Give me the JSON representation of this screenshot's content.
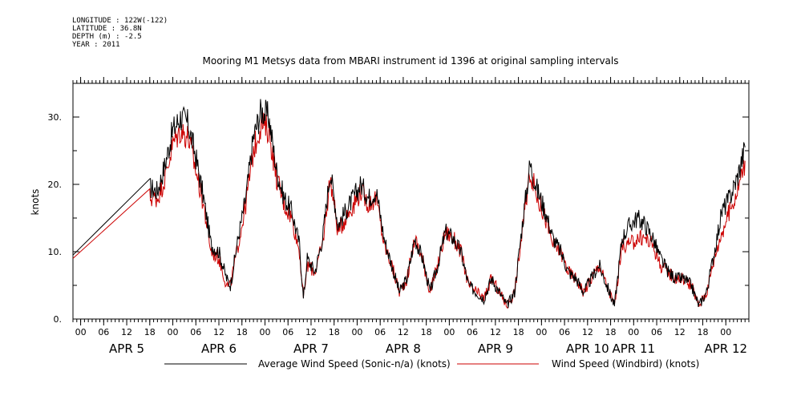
{
  "metadata": {
    "longitude": "LONGITUDE : 122W(-122)",
    "latitude": "LATITUDE : 36.8N",
    "depth": "DEPTH (m) : -2.5",
    "year": "YEAR : 2011"
  },
  "chart_data": {
    "type": "line",
    "title": "Mooring M1 Metsys data from MBARI instrument id 1396 at original sampling intervals",
    "ylabel": "knots",
    "xlabel": "",
    "xlim": [
      "2011-04-04T22:00",
      "2011-04-12T06:00"
    ],
    "ylim": [
      0,
      35
    ],
    "y_ticks": [
      "0.",
      "10.",
      "20.",
      "30."
    ],
    "x_hour_ticks": [
      {
        "t": "2011-04-05T00:00",
        "label": "00"
      },
      {
        "t": "2011-04-05T06:00",
        "label": "06"
      },
      {
        "t": "2011-04-05T12:00",
        "label": "12"
      },
      {
        "t": "2011-04-05T18:00",
        "label": "18"
      },
      {
        "t": "2011-04-06T00:00",
        "label": "00"
      },
      {
        "t": "2011-04-06T06:00",
        "label": "06"
      },
      {
        "t": "2011-04-06T12:00",
        "label": "12"
      },
      {
        "t": "2011-04-06T18:00",
        "label": "18"
      },
      {
        "t": "2011-04-07T00:00",
        "label": "00"
      },
      {
        "t": "2011-04-07T06:00",
        "label": "06"
      },
      {
        "t": "2011-04-07T12:00",
        "label": "12"
      },
      {
        "t": "2011-04-07T18:00",
        "label": "18"
      },
      {
        "t": "2011-04-08T00:00",
        "label": "00"
      },
      {
        "t": "2011-04-08T06:00",
        "label": "06"
      },
      {
        "t": "2011-04-08T12:00",
        "label": "12"
      },
      {
        "t": "2011-04-08T18:00",
        "label": "18"
      },
      {
        "t": "2011-04-09T00:00",
        "label": "00"
      },
      {
        "t": "2011-04-09T06:00",
        "label": "06"
      },
      {
        "t": "2011-04-09T12:00",
        "label": "12"
      },
      {
        "t": "2011-04-09T18:00",
        "label": "18"
      },
      {
        "t": "2011-04-10T00:00",
        "label": "00"
      },
      {
        "t": "2011-04-10T06:00",
        "label": "06"
      },
      {
        "t": "2011-04-10T12:00",
        "label": "12"
      },
      {
        "t": "2011-04-10T18:00",
        "label": "18"
      },
      {
        "t": "2011-04-11T00:00",
        "label": "00"
      },
      {
        "t": "2011-04-11T06:00",
        "label": "06"
      },
      {
        "t": "2011-04-11T12:00",
        "label": "12"
      },
      {
        "t": "2011-04-11T18:00",
        "label": "18"
      },
      {
        "t": "2011-04-12T00:00",
        "label": "00"
      }
    ],
    "x_day_labels": [
      {
        "t": "2011-04-05T12:00",
        "label": "APR  5"
      },
      {
        "t": "2011-04-06T12:00",
        "label": "APR  6"
      },
      {
        "t": "2011-04-07T12:00",
        "label": "APR  7"
      },
      {
        "t": "2011-04-08T12:00",
        "label": "APR  8"
      },
      {
        "t": "2011-04-09T12:00",
        "label": "APR  9"
      },
      {
        "t": "2011-04-10T12:00",
        "label": "APR 10"
      },
      {
        "t": "2011-04-11T00:00",
        "label": "APR 11"
      },
      {
        "t": "2011-04-12T00:00",
        "label": "APR 12"
      }
    ],
    "grid": false,
    "legend_position": "bottom",
    "series": [
      {
        "name": "Average Wind Speed (Sonic-n/a) (knots)",
        "color": "#000000",
        "x": [
          "2011-04-04T22:00",
          "2011-04-05T18:00",
          "2011-04-05T20:00",
          "2011-04-05T22:00",
          "2011-04-06T00:00",
          "2011-04-06T02:00",
          "2011-04-06T04:00",
          "2011-04-06T06:00",
          "2011-04-06T08:00",
          "2011-04-06T10:00",
          "2011-04-06T12:00",
          "2011-04-06T14:00",
          "2011-04-06T15:00",
          "2011-04-06T17:00",
          "2011-04-06T19:00",
          "2011-04-06T21:00",
          "2011-04-06T23:00",
          "2011-04-07T01:00",
          "2011-04-07T03:00",
          "2011-04-07T05:00",
          "2011-04-07T07:00",
          "2011-04-07T09:00",
          "2011-04-07T10:00",
          "2011-04-07T11:00",
          "2011-04-07T13:00",
          "2011-04-07T15:00",
          "2011-04-07T17:00",
          "2011-04-07T19:00",
          "2011-04-07T21:00",
          "2011-04-07T23:00",
          "2011-04-08T01:00",
          "2011-04-08T03:00",
          "2011-04-08T05:00",
          "2011-04-08T07:00",
          "2011-04-08T09:00",
          "2011-04-08T11:00",
          "2011-04-08T13:00",
          "2011-04-08T15:00",
          "2011-04-08T17:00",
          "2011-04-08T19:00",
          "2011-04-08T21:00",
          "2011-04-08T23:00",
          "2011-04-09T01:00",
          "2011-04-09T03:00",
          "2011-04-09T05:00",
          "2011-04-09T07:00",
          "2011-04-09T09:00",
          "2011-04-09T11:00",
          "2011-04-09T13:00",
          "2011-04-09T15:00",
          "2011-04-09T17:00",
          "2011-04-09T19:00",
          "2011-04-09T21:00",
          "2011-04-09T23:00",
          "2011-04-10T01:00",
          "2011-04-10T03:00",
          "2011-04-10T05:00",
          "2011-04-10T07:00",
          "2011-04-10T09:00",
          "2011-04-10T11:00",
          "2011-04-10T13:00",
          "2011-04-10T15:00",
          "2011-04-10T17:00",
          "2011-04-10T19:00",
          "2011-04-10T21:00",
          "2011-04-10T23:00",
          "2011-04-11T01:00",
          "2011-04-11T03:00",
          "2011-04-11T05:00",
          "2011-04-11T07:00",
          "2011-04-11T09:00",
          "2011-04-11T11:00",
          "2011-04-11T13:00",
          "2011-04-11T15:00",
          "2011-04-11T17:00",
          "2011-04-11T19:00",
          "2011-04-11T21:00",
          "2011-04-11T23:00",
          "2011-04-12T01:00",
          "2011-04-12T03:00",
          "2011-04-12T05:00"
        ],
        "y": [
          9.5,
          19.5,
          19,
          23,
          28,
          30,
          29,
          24,
          18,
          11,
          10,
          6,
          5,
          12,
          18,
          27,
          31,
          30,
          22,
          18,
          16,
          11,
          3,
          9,
          7,
          12,
          22,
          14,
          16,
          18,
          20,
          18,
          19,
          12,
          8,
          4,
          6,
          12,
          9,
          4,
          8,
          13,
          12,
          10,
          5,
          4,
          3,
          6,
          4,
          2,
          4,
          14,
          23,
          19,
          16,
          12,
          10,
          7,
          6,
          4,
          6,
          8,
          5,
          2,
          12,
          14,
          15,
          14,
          12,
          9,
          7,
          6,
          6,
          5,
          2,
          4,
          10,
          16,
          18,
          21,
          25.5
        ],
        "spike_amplitude": 1.6
      },
      {
        "name": "Wind Speed (Windbird) (knots)",
        "color": "#cc0000",
        "x": [
          "2011-04-04T22:00",
          "2011-04-05T18:00",
          "2011-04-05T20:00",
          "2011-04-05T22:00",
          "2011-04-06T00:00",
          "2011-04-06T02:00",
          "2011-04-06T04:00",
          "2011-04-06T06:00",
          "2011-04-06T08:00",
          "2011-04-06T10:00",
          "2011-04-06T12:00",
          "2011-04-06T14:00",
          "2011-04-06T15:00",
          "2011-04-06T17:00",
          "2011-04-06T19:00",
          "2011-04-06T21:00",
          "2011-04-06T23:00",
          "2011-04-07T01:00",
          "2011-04-07T03:00",
          "2011-04-07T05:00",
          "2011-04-07T07:00",
          "2011-04-07T09:00",
          "2011-04-07T10:00",
          "2011-04-07T11:00",
          "2011-04-07T13:00",
          "2011-04-07T15:00",
          "2011-04-07T17:00",
          "2011-04-07T19:00",
          "2011-04-07T21:00",
          "2011-04-07T23:00",
          "2011-04-08T01:00",
          "2011-04-08T03:00",
          "2011-04-08T05:00",
          "2011-04-08T07:00",
          "2011-04-08T09:00",
          "2011-04-08T11:00",
          "2011-04-08T13:00",
          "2011-04-08T15:00",
          "2011-04-08T17:00",
          "2011-04-08T19:00",
          "2011-04-08T21:00",
          "2011-04-08T23:00",
          "2011-04-09T01:00",
          "2011-04-09T03:00",
          "2011-04-09T05:00",
          "2011-04-09T07:00",
          "2011-04-09T09:00",
          "2011-04-09T11:00",
          "2011-04-09T13:00",
          "2011-04-09T15:00",
          "2011-04-09T17:00",
          "2011-04-09T19:00",
          "2011-04-09T21:00",
          "2011-04-09T23:00",
          "2011-04-10T01:00",
          "2011-04-10T03:00",
          "2011-04-10T05:00",
          "2011-04-10T07:00",
          "2011-04-10T09:00",
          "2011-04-10T11:00",
          "2011-04-10T13:00",
          "2011-04-10T15:00",
          "2011-04-10T17:00",
          "2011-04-10T19:00",
          "2011-04-10T21:00",
          "2011-04-10T23:00",
          "2011-04-11T01:00",
          "2011-04-11T03:00",
          "2011-04-11T05:00",
          "2011-04-11T07:00",
          "2011-04-11T09:00",
          "2011-04-11T11:00",
          "2011-04-11T13:00",
          "2011-04-11T15:00",
          "2011-04-11T17:00",
          "2011-04-11T19:00",
          "2011-04-11T21:00",
          "2011-04-11T23:00",
          "2011-04-12T01:00",
          "2011-04-12T03:00",
          "2011-04-12T05:00"
        ],
        "y": [
          9,
          18,
          18,
          21,
          26,
          28,
          27,
          22,
          17,
          10,
          9,
          5,
          5,
          11,
          17,
          25,
          29,
          28,
          21,
          17,
          15,
          10,
          3,
          8,
          7,
          11,
          21,
          13,
          15,
          17,
          19,
          17,
          18,
          11,
          8,
          4,
          6,
          12,
          9,
          4,
          8,
          13,
          12,
          10,
          5,
          4,
          3,
          6,
          4,
          2,
          4,
          13,
          22,
          18,
          15,
          11,
          10,
          7,
          6,
          4,
          6,
          8,
          5,
          2,
          11,
          11,
          12,
          12,
          11,
          8,
          7,
          6,
          6,
          5,
          2,
          4,
          9,
          13,
          16,
          19,
          23.5
        ],
        "spike_amplitude": 1.6
      }
    ]
  }
}
